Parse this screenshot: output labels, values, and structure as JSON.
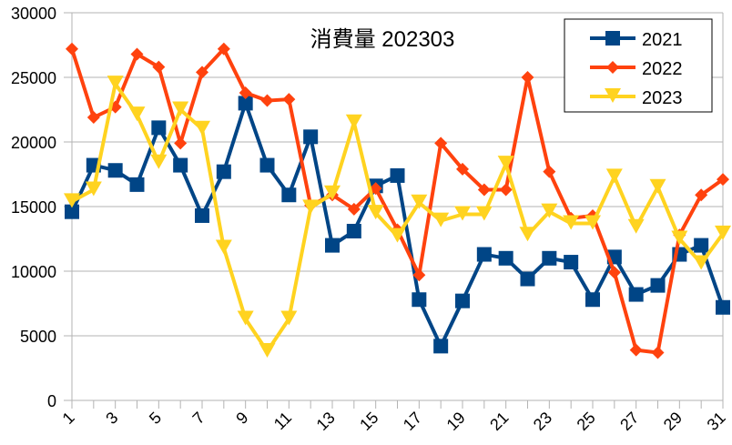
{
  "chart_data": {
    "type": "line",
    "title": "消費量 202303",
    "xlabel": "",
    "ylabel": "",
    "x": [
      1,
      2,
      3,
      4,
      5,
      6,
      7,
      8,
      9,
      10,
      11,
      12,
      13,
      14,
      15,
      16,
      17,
      18,
      19,
      20,
      21,
      22,
      23,
      24,
      25,
      26,
      27,
      28,
      29,
      30,
      31
    ],
    "x_tick_labels": [
      "1",
      "3",
      "5",
      "7",
      "9",
      "11",
      "13",
      "15",
      "17",
      "19",
      "21",
      "23",
      "25",
      "27",
      "29",
      "31"
    ],
    "y_tick_labels": [
      "0",
      "5000",
      "10000",
      "15000",
      "20000",
      "25000",
      "30000"
    ],
    "ylim": [
      0,
      30000
    ],
    "grid": true,
    "legend": "top-right",
    "series": [
      {
        "name": "2021",
        "color": "#004586",
        "marker": "square",
        "values": [
          14600,
          18200,
          17800,
          16700,
          21100,
          18200,
          14300,
          17700,
          23000,
          18200,
          15900,
          20400,
          12000,
          13100,
          16600,
          17400,
          7800,
          4200,
          7700,
          11300,
          11000,
          9400,
          11000,
          10700,
          7800,
          11100,
          8200,
          8900,
          11300,
          12000,
          7200
        ]
      },
      {
        "name": "2022",
        "color": "#ff420e",
        "marker": "diamond",
        "values": [
          27200,
          21900,
          22700,
          26800,
          25800,
          19900,
          25400,
          27200,
          23800,
          23200,
          23300,
          15100,
          15900,
          14800,
          16400,
          13200,
          9700,
          19900,
          17900,
          16300,
          16300,
          25000,
          17700,
          14100,
          14300,
          9900,
          3900,
          3700,
          12800,
          15900,
          17100
        ]
      },
      {
        "name": "2023",
        "color": "#ffd320",
        "marker": "triangle-down",
        "values": [
          15400,
          16300,
          24500,
          22100,
          18400,
          22500,
          21000,
          11800,
          6300,
          3800,
          6300,
          14900,
          16000,
          21500,
          14500,
          12700,
          15300,
          13900,
          14400,
          14400,
          18300,
          12800,
          14600,
          13700,
          13700,
          17300,
          13400,
          16500,
          12500,
          10600,
          12900
        ]
      }
    ]
  }
}
